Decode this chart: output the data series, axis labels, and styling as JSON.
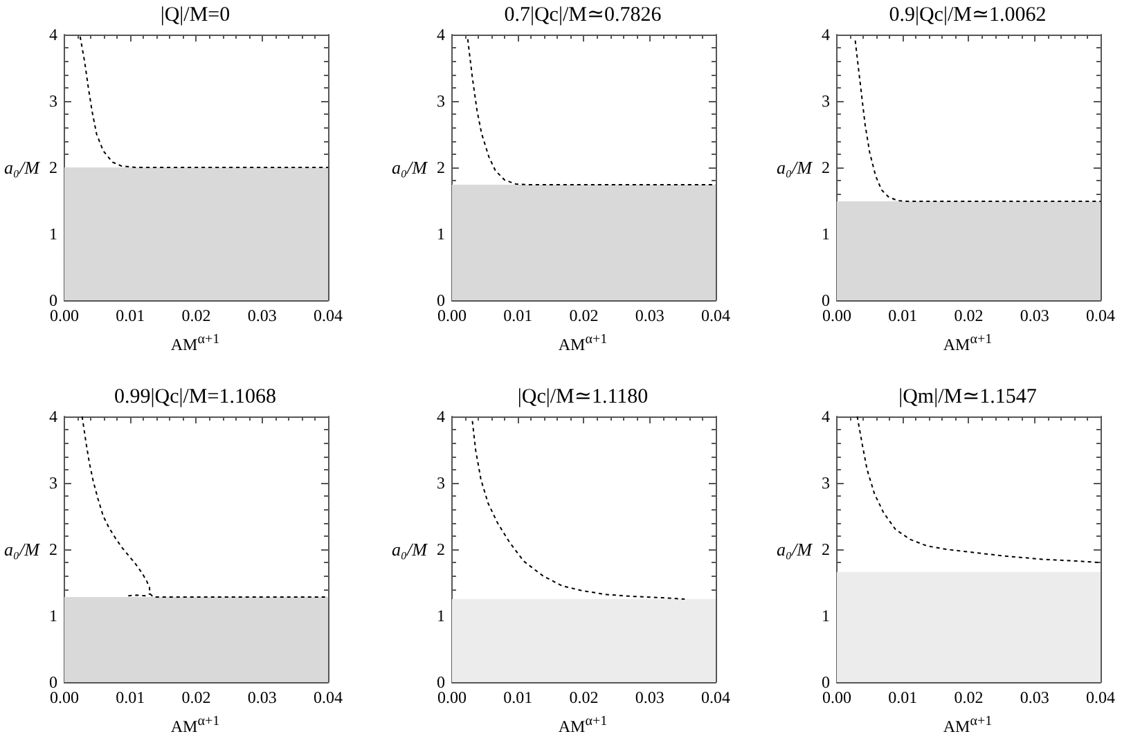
{
  "chart_data": [
    {
      "type": "line",
      "title": "|Q|/M=0",
      "xlabel": "AM$^{α+1}$",
      "ylabel": "a₀/M",
      "xlim": [
        0,
        0.04
      ],
      "xticks": [
        {
          "value": 0,
          "label": "0.00"
        },
        {
          "value": 0.01,
          "label": "0.01"
        },
        {
          "value": 0.02,
          "label": "0.02"
        },
        {
          "value": 0.03,
          "label": "0.03"
        },
        {
          "value": 0.04,
          "label": "0.04"
        }
      ],
      "ylim": [
        0,
        4
      ],
      "yticks": [
        0,
        1,
        2,
        3,
        4
      ],
      "line_style": "dashed",
      "marker": "none",
      "color": "#000000",
      "x": [
        0.0024,
        0.0031,
        0.0036,
        0.0042,
        0.0049,
        0.0059,
        0.0073,
        0.0087,
        0.0108,
        0.015,
        0.02,
        0.03,
        0.04
      ],
      "values": [
        3.97,
        3.58,
        3.23,
        2.85,
        2.5,
        2.25,
        2.08,
        2.02,
        2.0,
        2.0,
        2.0,
        2.0,
        2.0
      ],
      "bands": [
        {
          "axis": "y",
          "from": 0,
          "to": 2.0,
          "color": "#d9d9d9"
        }
      ]
    },
    {
      "type": "line",
      "title": "0.7|Qc|/M≃0.7826",
      "xlabel": "AM$^{α+1}$",
      "ylabel": "a₀/M",
      "xlim": [
        0,
        0.04
      ],
      "xticks": [
        {
          "value": 0,
          "label": "0.00"
        },
        {
          "value": 0.01,
          "label": "0.01"
        },
        {
          "value": 0.02,
          "label": "0.02"
        },
        {
          "value": 0.03,
          "label": "0.03"
        },
        {
          "value": 0.04,
          "label": "0.04"
        }
      ],
      "ylim": [
        0,
        4
      ],
      "yticks": [
        0,
        1,
        2,
        3,
        4
      ],
      "line_style": "dashed",
      "marker": "none",
      "color": "#000000",
      "x": [
        0.0024,
        0.0031,
        0.0038,
        0.0045,
        0.0056,
        0.0066,
        0.008,
        0.0097,
        0.0118,
        0.02,
        0.03,
        0.04
      ],
      "values": [
        3.93,
        3.35,
        2.86,
        2.51,
        2.16,
        1.95,
        1.81,
        1.75,
        1.74,
        1.74,
        1.74,
        1.74
      ],
      "bands": [
        {
          "axis": "y",
          "from": 0,
          "to": 1.74,
          "color": "#d9d9d9"
        }
      ]
    },
    {
      "type": "line",
      "title": "0.9|Qc|/M≃1.0062",
      "xlabel": "AM$^{α+1}$",
      "ylabel": "a₀/M",
      "xlim": [
        0,
        0.04
      ],
      "xticks": [
        {
          "value": 0,
          "label": "0.00"
        },
        {
          "value": 0.01,
          "label": "0.01"
        },
        {
          "value": 0.02,
          "label": "0.02"
        },
        {
          "value": 0.03,
          "label": "0.03"
        },
        {
          "value": 0.04,
          "label": "0.04"
        }
      ],
      "ylim": [
        0,
        4
      ],
      "yticks": [
        0,
        1,
        2,
        3,
        4
      ],
      "line_style": "dashed",
      "marker": "none",
      "color": "#000000",
      "x": [
        0.0028,
        0.0033,
        0.0038,
        0.0043,
        0.005,
        0.0059,
        0.0068,
        0.0078,
        0.0092,
        0.0106,
        0.02,
        0.03,
        0.04
      ],
      "values": [
        3.91,
        3.48,
        3.06,
        2.64,
        2.22,
        1.87,
        1.66,
        1.56,
        1.5,
        1.49,
        1.49,
        1.49,
        1.49
      ],
      "bands": [
        {
          "axis": "y",
          "from": 0,
          "to": 1.49,
          "color": "#d9d9d9"
        }
      ]
    },
    {
      "type": "line",
      "title": "0.99|Qc|/M=1.1068",
      "xlabel": "AM$^{α+1}$",
      "ylabel": "a₀/M",
      "xlim": [
        0,
        0.04
      ],
      "xticks": [
        {
          "value": 0,
          "label": "0.00"
        },
        {
          "value": 0.01,
          "label": "0.01"
        },
        {
          "value": 0.02,
          "label": "0.02"
        },
        {
          "value": 0.03,
          "label": "0.03"
        },
        {
          "value": 0.04,
          "label": "0.04"
        }
      ],
      "ylim": [
        0,
        4
      ],
      "yticks": [
        0,
        1,
        2,
        3,
        4
      ],
      "line_style": "dashed",
      "marker": "none",
      "series": [
        {
          "color": "#000000",
          "x": [
            0.0027,
            0.0033,
            0.0038,
            0.0044,
            0.0051,
            0.0059,
            0.0068,
            0.0078,
            0.0088,
            0.0098,
            0.0108,
            0.0118,
            0.0125,
            0.0129,
            0.013,
            0.0135,
            0.02,
            0.03,
            0.04
          ],
          "values": [
            4.0,
            3.6,
            3.3,
            3.02,
            2.76,
            2.5,
            2.32,
            2.16,
            2.02,
            1.9,
            1.78,
            1.64,
            1.52,
            1.43,
            1.33,
            1.28,
            1.28,
            1.28,
            1.28
          ]
        },
        {
          "color": "#000000",
          "x": [
            0.0097,
            0.011,
            0.0122,
            0.013
          ],
          "values": [
            1.3,
            1.31,
            1.3,
            1.33
          ]
        }
      ],
      "bands": [
        {
          "axis": "y",
          "from": 0,
          "to": 1.28,
          "color": "#d9d9d9"
        }
      ]
    },
    {
      "type": "line",
      "title": "|Qc|/M≃1.1180",
      "xlabel": "AM$^{α+1}$",
      "ylabel": "a₀/M",
      "xlim": [
        0,
        0.04
      ],
      "xticks": [
        {
          "value": 0,
          "label": "0.00"
        },
        {
          "value": 0.01,
          "label": "0.01"
        },
        {
          "value": 0.02,
          "label": "0.02"
        },
        {
          "value": 0.03,
          "label": "0.03"
        },
        {
          "value": 0.04,
          "label": "0.04"
        }
      ],
      "ylim": [
        0,
        4
      ],
      "yticks": [
        0,
        1,
        2,
        3,
        4
      ],
      "line_style": "dashed",
      "marker": "none",
      "color": "#000000",
      "x": [
        0.0031,
        0.0036,
        0.0044,
        0.0055,
        0.0069,
        0.0087,
        0.0109,
        0.0138,
        0.0167,
        0.0196,
        0.0233,
        0.0276,
        0.032,
        0.0353
      ],
      "values": [
        3.93,
        3.49,
        3.05,
        2.69,
        2.4,
        2.11,
        1.82,
        1.6,
        1.45,
        1.38,
        1.32,
        1.29,
        1.27,
        1.25
      ],
      "bands": [
        {
          "axis": "y",
          "from": 0,
          "to": 1.25,
          "color": "#ececec"
        }
      ]
    },
    {
      "type": "line",
      "title": "|Qm|/M≃1.1547",
      "xlabel": "AM$^{α+1}$",
      "ylabel": "a₀/M",
      "xlim": [
        0,
        0.04
      ],
      "xticks": [
        {
          "value": 0,
          "label": "0.00"
        },
        {
          "value": 0.01,
          "label": "0.01"
        },
        {
          "value": 0.02,
          "label": "0.02"
        },
        {
          "value": 0.03,
          "label": "0.03"
        },
        {
          "value": 0.04,
          "label": "0.04"
        }
      ],
      "ylim": [
        0,
        4
      ],
      "yticks": [
        0,
        1,
        2,
        3,
        4
      ],
      "line_style": "dashed",
      "marker": "none",
      "color": "#000000",
      "x": [
        0.0031,
        0.0039,
        0.0046,
        0.0057,
        0.0071,
        0.0089,
        0.0111,
        0.0137,
        0.0166,
        0.0209,
        0.0253,
        0.0311,
        0.0369,
        0.04
      ],
      "values": [
        4.0,
        3.56,
        3.2,
        2.84,
        2.55,
        2.3,
        2.15,
        2.05,
        2.0,
        1.95,
        1.9,
        1.85,
        1.82,
        1.8
      ],
      "bands": [
        {
          "axis": "y",
          "from": 0,
          "to": 1.66,
          "color": "#ececec"
        }
      ]
    }
  ]
}
